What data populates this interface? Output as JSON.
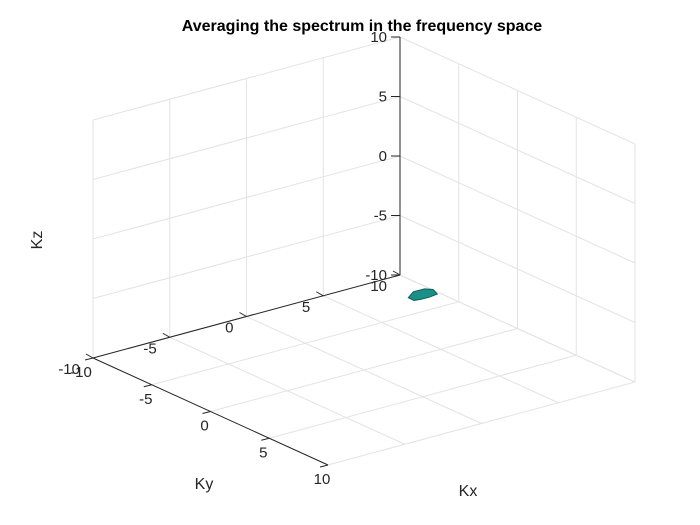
{
  "chart_data": {
    "type": "scatter",
    "title": "Averaging the spectrum in the frequency space",
    "xlabel": "Kx",
    "ylabel": "Ky",
    "zlabel": "Kz",
    "xlim": [
      -10,
      10
    ],
    "ylim": [
      -10,
      10
    ],
    "zlim": [
      -10,
      10
    ],
    "xticks": [
      "-10",
      "-5",
      "0",
      "5",
      "10"
    ],
    "yticks": [
      "-10",
      "-5",
      "0",
      "5",
      "10"
    ],
    "zticks": [
      "-10",
      "-5",
      "0",
      "5",
      "10"
    ],
    "grid": true,
    "view": "3d",
    "surface": {
      "color": "#1a8f87",
      "edge_color": "#0f5f5a",
      "points": [
        {
          "x": 7.6,
          "y": -2.6,
          "z": 0.9
        },
        {
          "x": 7.9,
          "y": -2.1,
          "z": 1.1
        },
        {
          "x": 8.1,
          "y": -1.7,
          "z": 1.0
        },
        {
          "x": 8.2,
          "y": -1.5,
          "z": 0.6
        },
        {
          "x": 7.9,
          "y": -1.8,
          "z": 0.3
        },
        {
          "x": 7.6,
          "y": -2.1,
          "z": 0.1
        },
        {
          "x": 7.4,
          "y": -2.4,
          "z": 0.0
        },
        {
          "x": 7.3,
          "y": -2.7,
          "z": 0.3
        }
      ]
    }
  }
}
